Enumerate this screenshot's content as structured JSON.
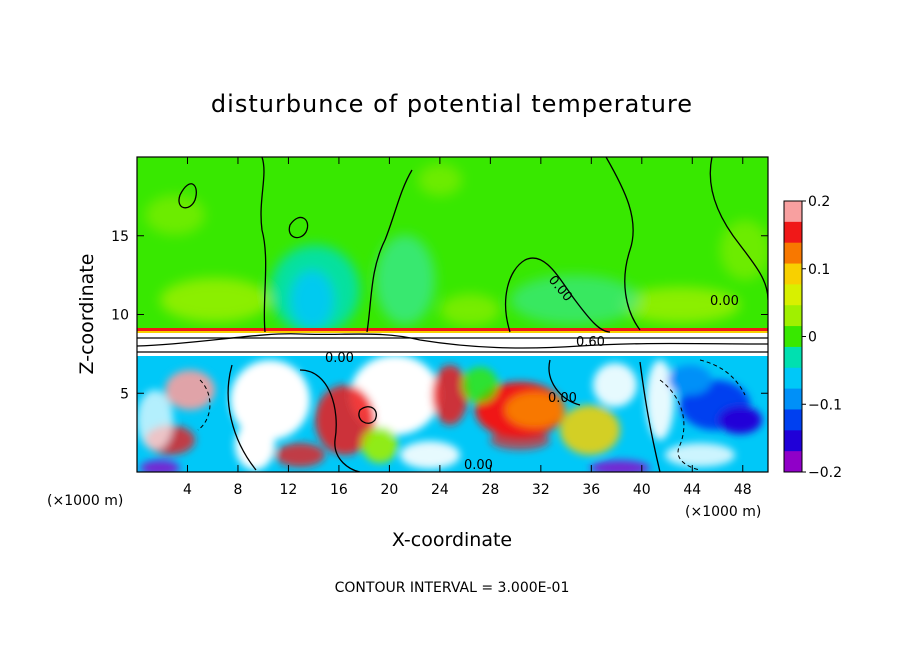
{
  "chart_data": {
    "type": "heatmap",
    "title": "disturbunce of potential temperature",
    "xlabel": "X-coordinate",
    "ylabel": "Z-coordinate",
    "x_unit": "(×1000 m)",
    "x_unit_right": "(×1000 m)",
    "xlim": [
      0,
      50
    ],
    "ylim": [
      0,
      20
    ],
    "x_ticks": [
      4,
      8,
      12,
      16,
      20,
      24,
      28,
      32,
      36,
      40,
      44,
      48
    ],
    "y_ticks": [
      5,
      10,
      15
    ],
    "colorbar": {
      "min": -0.2,
      "max": 0.2,
      "ticks": [
        "0.2",
        "0.1",
        "0",
        "−0.1",
        "−0.2"
      ],
      "tick_values": [
        0.2,
        0.1,
        0,
        -0.1,
        -0.2
      ],
      "colors": [
        "#f8a0a0",
        "#f01818",
        "#f87800",
        "#f8d000",
        "#d8f000",
        "#a0f000",
        "#38e800",
        "#00e0b0",
        "#00c8f8",
        "#0090f8",
        "#0040f0",
        "#2000d8",
        "#9000c8"
      ]
    },
    "contour_labels": [
      "0.60",
      "0.00",
      "0.00",
      "0.00",
      "0.00",
      "0.00"
    ],
    "contour_interval_text": "CONTOUR INTERVAL = 3.000E-01",
    "grid": false
  }
}
